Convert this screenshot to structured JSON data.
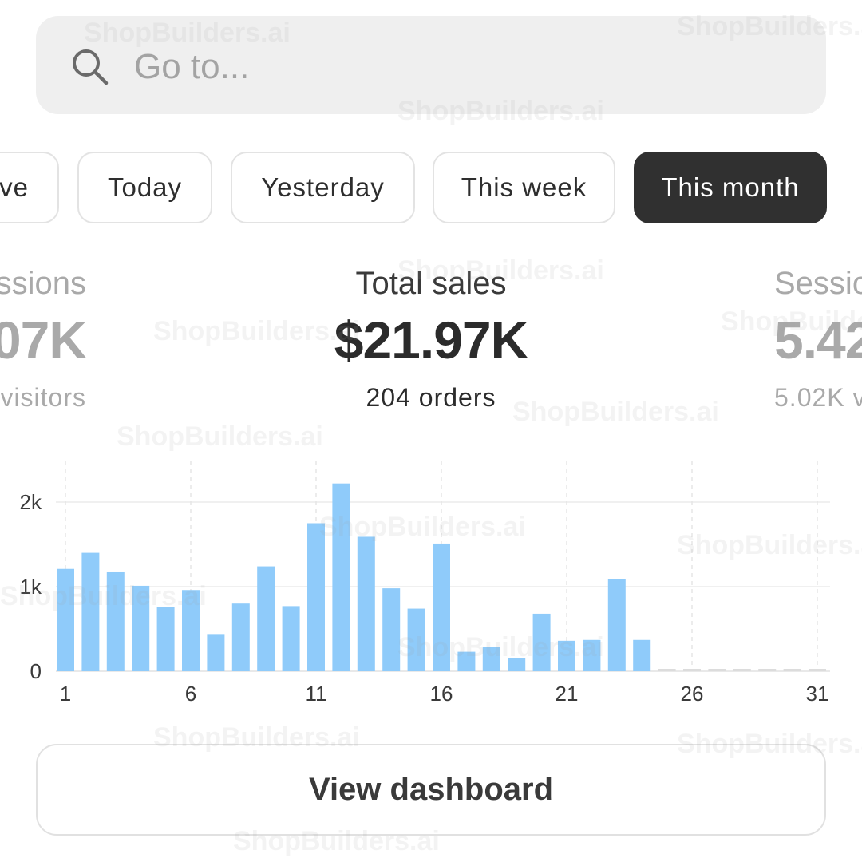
{
  "search": {
    "placeholder": "Go to...",
    "value": ""
  },
  "date_filters": [
    {
      "label": "ve",
      "active": false
    },
    {
      "label": "Today",
      "active": false
    },
    {
      "label": "Yesterday",
      "active": false
    },
    {
      "label": "This week",
      "active": false
    },
    {
      "label": "This month",
      "active": true
    }
  ],
  "metrics": {
    "left": {
      "label": "ssions",
      "value": "07K",
      "sub": "visitors"
    },
    "center": {
      "label": "Total sales",
      "value": "$21.97K",
      "sub": "204 orders"
    },
    "right": {
      "label": "Sessio",
      "value": "5.42",
      "sub": "5.02K v"
    }
  },
  "chart_data": {
    "type": "bar",
    "x": [
      1,
      2,
      3,
      4,
      5,
      6,
      7,
      8,
      9,
      10,
      11,
      12,
      13,
      14,
      15,
      16,
      17,
      18,
      19,
      20,
      21,
      22,
      23,
      24,
      25,
      26,
      27,
      28,
      29,
      30,
      31
    ],
    "values": [
      1210,
      1400,
      1170,
      1010,
      760,
      960,
      440,
      800,
      1240,
      770,
      1750,
      2220,
      1590,
      980,
      740,
      1510,
      230,
      290,
      160,
      680,
      360,
      370,
      1090,
      370,
      0,
      0,
      0,
      0,
      0,
      0,
      0
    ],
    "xticks": [
      "1",
      "6",
      "11",
      "16",
      "21",
      "26",
      "31"
    ],
    "ytick_labels": [
      "0",
      "1k",
      "2k"
    ],
    "yticks": [
      0,
      1000,
      2000
    ],
    "ylim": [
      0,
      2200
    ],
    "bar_color": "#8fcbfa",
    "grid": true
  },
  "view_dashboard_label": "View dashboard",
  "watermark": "ShopBuilders.ai"
}
